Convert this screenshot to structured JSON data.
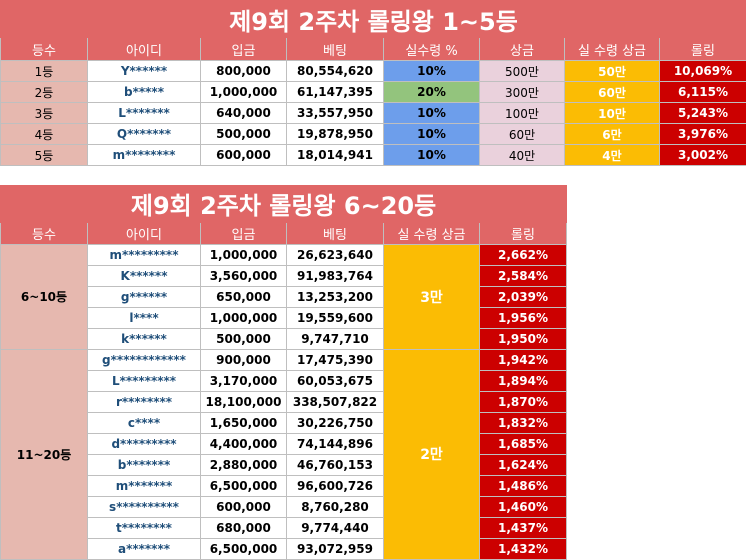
{
  "table1": {
    "title": "제9회 2주차 롤링왕 1~5등",
    "headers": [
      "등수",
      "아이디",
      "입금",
      "베팅",
      "실수령 %",
      "상금",
      "실 수령 상금",
      "롤링"
    ],
    "rows": [
      {
        "rank": "1등",
        "id": "Y******",
        "deposit": "800,000",
        "bet": "80,554,620",
        "rate": "10%",
        "prize": "500만",
        "real": "50만",
        "rolling": "10,069%"
      },
      {
        "rank": "2등",
        "id": "b*****",
        "deposit": "1,000,000",
        "bet": "61,147,395",
        "rate": "20%",
        "prize": "300만",
        "real": "60만",
        "rolling": "6,115%"
      },
      {
        "rank": "3등",
        "id": "L*******",
        "deposit": "640,000",
        "bet": "33,557,950",
        "rate": "10%",
        "prize": "100만",
        "real": "10만",
        "rolling": "5,243%"
      },
      {
        "rank": "4등",
        "id": "Q*******",
        "deposit": "500,000",
        "bet": "19,878,950",
        "rate": "10%",
        "prize": "60만",
        "real": "6만",
        "rolling": "3,976%"
      },
      {
        "rank": "5등",
        "id": "m********",
        "deposit": "600,000",
        "bet": "18,014,941",
        "rate": "10%",
        "prize": "40만",
        "real": "4만",
        "rolling": "3,002%"
      }
    ]
  },
  "table2": {
    "title": "제9회 2주차 롤링왕 6~20등",
    "headers": [
      "등수",
      "아이디",
      "입금",
      "베팅",
      "실 수령 상금",
      "롤링"
    ],
    "groups": [
      {
        "label": "6~10등",
        "prize": "3만",
        "rows": [
          {
            "id": "m*********",
            "deposit": "1,000,000",
            "bet": "26,623,640",
            "rolling": "2,662%"
          },
          {
            "id": "K******",
            "deposit": "3,560,000",
            "bet": "91,983,764",
            "rolling": "2,584%"
          },
          {
            "id": "g******",
            "deposit": "650,000",
            "bet": "13,253,200",
            "rolling": "2,039%"
          },
          {
            "id": "l****",
            "deposit": "1,000,000",
            "bet": "19,559,600",
            "rolling": "1,956%"
          },
          {
            "id": "k******",
            "deposit": "500,000",
            "bet": "9,747,710",
            "rolling": "1,950%"
          }
        ]
      },
      {
        "label": "11~20등",
        "prize": "2만",
        "rows": [
          {
            "id": "g************",
            "deposit": "900,000",
            "bet": "17,475,390",
            "rolling": "1,942%"
          },
          {
            "id": "L*********",
            "deposit": "3,170,000",
            "bet": "60,053,675",
            "rolling": "1,894%"
          },
          {
            "id": "r********",
            "deposit": "18,100,000",
            "bet": "338,507,822",
            "rolling": "1,870%"
          },
          {
            "id": "c****",
            "deposit": "1,650,000",
            "bet": "30,226,750",
            "rolling": "1,832%"
          },
          {
            "id": "d*********",
            "deposit": "4,400,000",
            "bet": "74,144,896",
            "rolling": "1,685%"
          },
          {
            "id": "b*******",
            "deposit": "2,880,000",
            "bet": "46,760,153",
            "rolling": "1,624%"
          },
          {
            "id": "m*******",
            "deposit": "6,500,000",
            "bet": "96,600,726",
            "rolling": "1,486%"
          },
          {
            "id": "s**********",
            "deposit": "600,000",
            "bet": "8,760,280",
            "rolling": "1,460%"
          },
          {
            "id": "t********",
            "deposit": "680,000",
            "bet": "9,774,440",
            "rolling": "1,437%"
          },
          {
            "id": "a*******",
            "deposit": "6,500,000",
            "bet": "93,072,959",
            "rolling": "1,432%"
          }
        ]
      }
    ]
  }
}
